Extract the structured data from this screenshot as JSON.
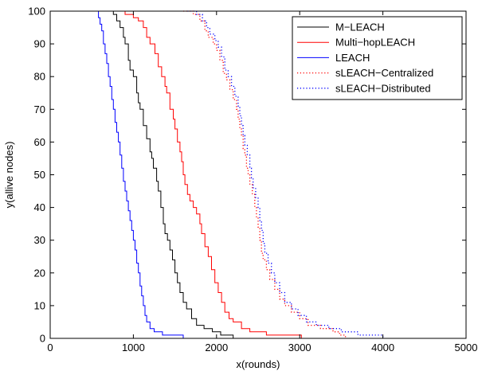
{
  "chart_data": {
    "type": "line",
    "title": "",
    "xlabel": "x(rounds)",
    "ylabel": "y(allive nodes)",
    "xlim": [
      0,
      5000
    ],
    "ylim": [
      0,
      100
    ],
    "xticks": [
      0,
      1000,
      2000,
      3000,
      4000,
      5000
    ],
    "yticks": [
      0,
      10,
      20,
      30,
      40,
      50,
      60,
      70,
      80,
      90,
      100
    ],
    "grid": false,
    "legend_position": "top-right",
    "series": [
      {
        "name": "M−LEACH",
        "color": "#000000",
        "style": "solid",
        "points": [
          [
            0,
            100
          ],
          [
            700,
            100
          ],
          [
            760,
            99
          ],
          [
            800,
            97
          ],
          [
            840,
            95
          ],
          [
            880,
            92
          ],
          [
            900,
            90
          ],
          [
            940,
            85
          ],
          [
            960,
            82
          ],
          [
            1000,
            80
          ],
          [
            1040,
            75
          ],
          [
            1060,
            72
          ],
          [
            1080,
            70
          ],
          [
            1120,
            65
          ],
          [
            1160,
            61
          ],
          [
            1200,
            57
          ],
          [
            1220,
            55
          ],
          [
            1240,
            52
          ],
          [
            1280,
            48
          ],
          [
            1300,
            45
          ],
          [
            1330,
            40
          ],
          [
            1360,
            35
          ],
          [
            1380,
            32
          ],
          [
            1410,
            30
          ],
          [
            1440,
            27
          ],
          [
            1470,
            24
          ],
          [
            1500,
            20
          ],
          [
            1530,
            17
          ],
          [
            1560,
            14
          ],
          [
            1600,
            11
          ],
          [
            1640,
            9
          ],
          [
            1700,
            6
          ],
          [
            1760,
            4
          ],
          [
            1850,
            3
          ],
          [
            1950,
            2
          ],
          [
            2050,
            1
          ],
          [
            2200,
            0
          ],
          [
            5000,
            0
          ]
        ]
      },
      {
        "name": "Multi−hopLEACH",
        "color": "#ff0000",
        "style": "solid",
        "points": [
          [
            0,
            100
          ],
          [
            850,
            100
          ],
          [
            900,
            99
          ],
          [
            1000,
            98
          ],
          [
            1060,
            97
          ],
          [
            1120,
            95
          ],
          [
            1160,
            92
          ],
          [
            1200,
            90
          ],
          [
            1260,
            87
          ],
          [
            1300,
            83
          ],
          [
            1340,
            80
          ],
          [
            1380,
            77
          ],
          [
            1400,
            75
          ],
          [
            1440,
            70
          ],
          [
            1480,
            67
          ],
          [
            1500,
            64
          ],
          [
            1530,
            60
          ],
          [
            1560,
            57
          ],
          [
            1580,
            54
          ],
          [
            1600,
            50
          ],
          [
            1620,
            47
          ],
          [
            1650,
            44
          ],
          [
            1680,
            42
          ],
          [
            1720,
            40
          ],
          [
            1760,
            38
          ],
          [
            1800,
            35
          ],
          [
            1820,
            32
          ],
          [
            1860,
            28
          ],
          [
            1900,
            25
          ],
          [
            1940,
            21
          ],
          [
            1980,
            17
          ],
          [
            2020,
            14
          ],
          [
            2060,
            11
          ],
          [
            2100,
            8
          ],
          [
            2150,
            6
          ],
          [
            2200,
            5
          ],
          [
            2300,
            3
          ],
          [
            2400,
            2
          ],
          [
            2600,
            1
          ],
          [
            3000,
            1
          ],
          [
            3020,
            0
          ],
          [
            5000,
            0
          ]
        ]
      },
      {
        "name": "LEACH",
        "color": "#0000ff",
        "style": "solid",
        "points": [
          [
            0,
            100
          ],
          [
            550,
            100
          ],
          [
            580,
            98
          ],
          [
            600,
            96
          ],
          [
            620,
            94
          ],
          [
            640,
            90
          ],
          [
            660,
            87
          ],
          [
            680,
            84
          ],
          [
            700,
            80
          ],
          [
            720,
            77
          ],
          [
            740,
            73
          ],
          [
            760,
            70
          ],
          [
            780,
            66
          ],
          [
            800,
            63
          ],
          [
            820,
            60
          ],
          [
            840,
            56
          ],
          [
            860,
            52
          ],
          [
            880,
            48
          ],
          [
            900,
            45
          ],
          [
            920,
            42
          ],
          [
            940,
            39
          ],
          [
            960,
            36
          ],
          [
            980,
            33
          ],
          [
            1000,
            30
          ],
          [
            1020,
            27
          ],
          [
            1040,
            23
          ],
          [
            1060,
            20
          ],
          [
            1080,
            16
          ],
          [
            1100,
            13
          ],
          [
            1120,
            10
          ],
          [
            1140,
            7
          ],
          [
            1160,
            5
          ],
          [
            1200,
            3
          ],
          [
            1250,
            2
          ],
          [
            1350,
            1
          ],
          [
            1450,
            1
          ],
          [
            1600,
            0
          ],
          [
            5000,
            0
          ]
        ]
      },
      {
        "name": "sLEACH−Centralized",
        "color": "#ff0000",
        "style": "dotted",
        "points": [
          [
            1600,
            100
          ],
          [
            1720,
            99
          ],
          [
            1800,
            97
          ],
          [
            1860,
            94
          ],
          [
            1900,
            92
          ],
          [
            1960,
            90
          ],
          [
            2000,
            88
          ],
          [
            2040,
            85
          ],
          [
            2080,
            81
          ],
          [
            2120,
            79
          ],
          [
            2160,
            76
          ],
          [
            2200,
            73
          ],
          [
            2240,
            70
          ],
          [
            2260,
            67
          ],
          [
            2280,
            64
          ],
          [
            2300,
            62
          ],
          [
            2320,
            58
          ],
          [
            2340,
            56
          ],
          [
            2360,
            52
          ],
          [
            2380,
            50
          ],
          [
            2400,
            47
          ],
          [
            2430,
            44
          ],
          [
            2460,
            40
          ],
          [
            2480,
            37
          ],
          [
            2500,
            34
          ],
          [
            2520,
            30
          ],
          [
            2540,
            26
          ],
          [
            2560,
            24
          ],
          [
            2600,
            21
          ],
          [
            2640,
            18
          ],
          [
            2700,
            15
          ],
          [
            2760,
            12
          ],
          [
            2820,
            10
          ],
          [
            2900,
            8
          ],
          [
            3000,
            6
          ],
          [
            3100,
            4
          ],
          [
            3250,
            3
          ],
          [
            3400,
            2
          ],
          [
            3480,
            1
          ],
          [
            3550,
            0
          ]
        ]
      },
      {
        "name": "sLEACH−Distributed",
        "color": "#0000ff",
        "style": "dotted",
        "points": [
          [
            1650,
            100
          ],
          [
            1760,
            99
          ],
          [
            1830,
            97
          ],
          [
            1880,
            95
          ],
          [
            1920,
            93
          ],
          [
            1980,
            91
          ],
          [
            2020,
            89
          ],
          [
            2060,
            86
          ],
          [
            2100,
            82
          ],
          [
            2140,
            80
          ],
          [
            2180,
            77
          ],
          [
            2220,
            74
          ],
          [
            2260,
            71
          ],
          [
            2280,
            68
          ],
          [
            2300,
            65
          ],
          [
            2320,
            62
          ],
          [
            2340,
            59
          ],
          [
            2370,
            56
          ],
          [
            2400,
            52
          ],
          [
            2420,
            49
          ],
          [
            2440,
            46
          ],
          [
            2470,
            43
          ],
          [
            2500,
            40
          ],
          [
            2520,
            36
          ],
          [
            2540,
            33
          ],
          [
            2560,
            29
          ],
          [
            2580,
            26
          ],
          [
            2620,
            23
          ],
          [
            2660,
            20
          ],
          [
            2700,
            17
          ],
          [
            2760,
            14
          ],
          [
            2820,
            11
          ],
          [
            2900,
            9
          ],
          [
            2980,
            7
          ],
          [
            3080,
            5
          ],
          [
            3200,
            4
          ],
          [
            3350,
            3
          ],
          [
            3500,
            2
          ],
          [
            3700,
            1
          ],
          [
            4000,
            0
          ]
        ]
      }
    ]
  }
}
